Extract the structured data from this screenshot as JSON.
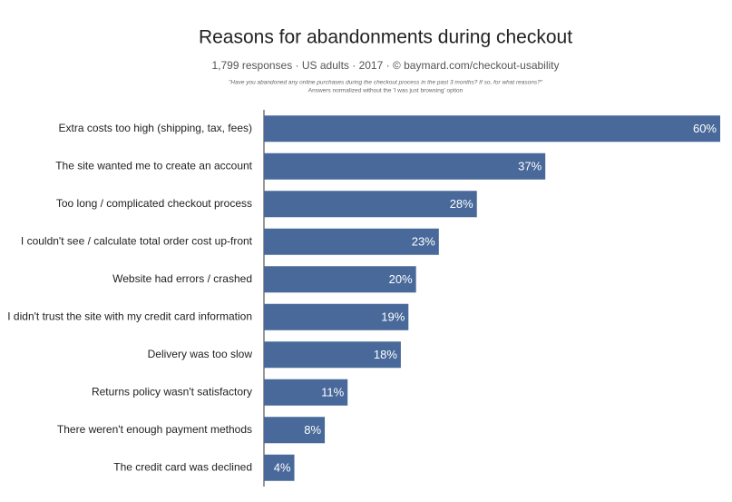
{
  "chart_data": {
    "type": "bar",
    "orientation": "horizontal",
    "title": "Reasons for abandonments during checkout",
    "subtitle": "1,799 responses  ·  US adults  ·  2017  ·  © baymard.com/checkout-usability",
    "notes": [
      "\"Have you abandoned any online purchases during the checkout process in the past 3 months? If so, for what reasons?\"",
      "Answers normalized without the 'I was just browsing' option"
    ],
    "categories": [
      "Extra costs too high (shipping, tax, fees)",
      "The site wanted me to create an account",
      "Too long / complicated checkout process",
      "I couldn't see / calculate total order cost up-front",
      "Website had errors / crashed",
      "I didn't trust the site with my credit card information",
      "Delivery was too slow",
      "Returns policy wasn't satisfactory",
      "There weren't enough payment methods",
      "The credit card was declined"
    ],
    "values": [
      60,
      37,
      28,
      23,
      20,
      19,
      18,
      11,
      8,
      4
    ],
    "value_labels": [
      "60%",
      "37%",
      "28%",
      "23%",
      "20%",
      "19%",
      "18%",
      "11%",
      "8%",
      "4%"
    ],
    "color": "#48699a",
    "xlim": [
      0,
      60
    ]
  }
}
